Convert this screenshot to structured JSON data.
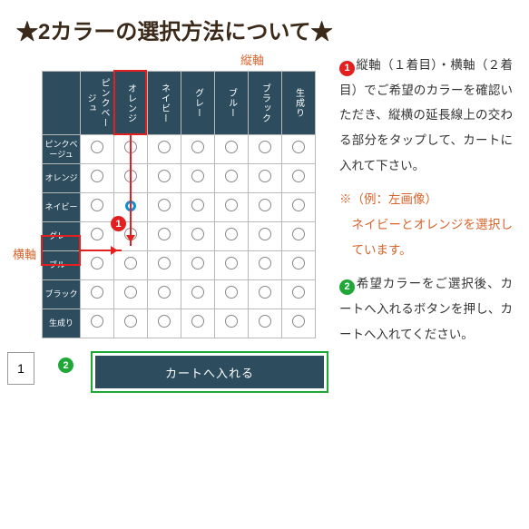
{
  "title": "★2カラーの選択方法について★",
  "axis": {
    "top": "縦軸",
    "left": "横軸"
  },
  "colors": [
    "ピンクベージュ",
    "オレンジ",
    "ネイビー",
    "グレー",
    "ブルー",
    "ブラック",
    "生成り"
  ],
  "highlight": {
    "col": 1,
    "row": 2
  },
  "cart": {
    "qty": "1",
    "button": "カートへ入れる"
  },
  "badges": {
    "one": "1",
    "two": "2"
  },
  "text": {
    "p1": "縦軸（１着目）・横軸（２着目）でご希望のカラーを確認いただき、縦横の延長線上の交わる部分をタップして、カートに入れて下さい。",
    "ex_head": "※（例：左画像）",
    "ex_body": "ネイビーとオレンジを選択しています。",
    "p2": "希望カラーをご選択後、カートへ入れるボタンを押し、カートへ入れてください。"
  },
  "style": {
    "header_bg": "#2d4d5f",
    "accent_orange": "#d9622a",
    "accent_red": "#e22020",
    "accent_green": "#1fa838",
    "accent_blue": "#0a8fd8",
    "title_color": "#3b2a1a"
  }
}
